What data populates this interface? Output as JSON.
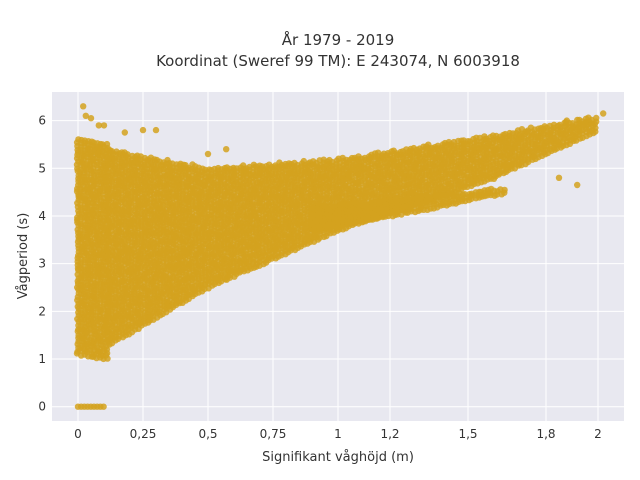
{
  "chart_data": {
    "type": "scatter",
    "title": "År 1979 - 2019",
    "subtitle": "Koordinat (Sweref 99 TM): E 243074, N 6003918",
    "xlabel": "Signifikant våghöjd (m)",
    "ylabel": "Vågperiod (s)",
    "xlim": [
      -0.1,
      2.1
    ],
    "ylim": [
      -0.3,
      6.6
    ],
    "x_ticks": [
      0,
      0.25,
      0.5,
      0.75,
      1,
      1.2,
      1.5,
      1.8,
      2
    ],
    "x_tick_labels": [
      "0",
      "0,25",
      "0,5",
      "0,75",
      "1",
      "1,2",
      "1,5",
      "1,8",
      "2"
    ],
    "y_ticks": [
      0,
      1,
      2,
      3,
      4,
      5,
      6
    ],
    "y_tick_labels": [
      "0",
      "1",
      "2",
      "3",
      "4",
      "5",
      "6"
    ],
    "grid": true,
    "marker_color": "#d4a21f",
    "background_color": "#e8e8f0",
    "series": [
      {
        "regions": [
          {
            "kind": "band",
            "x": [
              0.0,
              0.12
            ],
            "ymin": [
              1.1,
              1.0
            ],
            "ymax": [
              5.6,
              5.5
            ]
          },
          {
            "kind": "band",
            "x": [
              0.12,
              0.5,
              1.0,
              1.6,
              2.0
            ],
            "ymin": [
              1.3,
              2.5,
              3.7,
              4.8,
              5.8
            ],
            "ymax": [
              5.4,
              5.0,
              5.2,
              5.7,
              6.1
            ]
          },
          {
            "kind": "band",
            "x": [
              0.9,
              1.3,
              1.65
            ],
            "ymin": [
              3.7,
              4.1,
              4.5
            ],
            "ymax": [
              4.2,
              4.4,
              4.6
            ]
          },
          {
            "kind": "band",
            "x": [
              0.0,
              0.1
            ],
            "ymin": [
              0.0,
              0.0
            ],
            "ymax": [
              0.0,
              0.0
            ]
          }
        ],
        "outliers": [
          [
            0.02,
            6.3
          ],
          [
            0.03,
            6.1
          ],
          [
            0.05,
            6.05
          ],
          [
            0.08,
            5.9
          ],
          [
            0.1,
            5.9
          ],
          [
            0.18,
            5.75
          ],
          [
            0.25,
            5.8
          ],
          [
            0.3,
            5.8
          ],
          [
            0.5,
            5.3
          ],
          [
            0.57,
            5.4
          ],
          [
            1.85,
            4.8
          ],
          [
            1.92,
            4.65
          ],
          [
            2.02,
            6.15
          ],
          [
            1.95,
            5.95
          ],
          [
            1.88,
            6.0
          ]
        ]
      }
    ]
  }
}
